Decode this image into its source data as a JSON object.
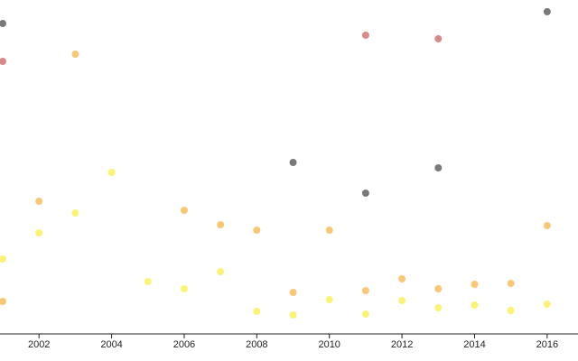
{
  "chart_data": {
    "type": "scatter",
    "xlim": [
      2000.925,
      2016.85
    ],
    "ylim": [
      0,
      370
    ],
    "xticks": [
      2002,
      2004,
      2006,
      2008,
      2010,
      2012,
      2014,
      2016
    ],
    "series": [
      {
        "color": "#7a7a7a",
        "x": [
          2001,
          2009,
          2011,
          2013,
          2016
        ],
        "values": [
          344,
          190,
          156,
          184,
          357
        ]
      },
      {
        "color": "#d88a8a",
        "x": [
          2001,
          2011,
          2013
        ],
        "values": [
          302,
          331,
          327
        ]
      },
      {
        "color": "#f8c878",
        "x": [
          2001,
          2002,
          2003,
          2006,
          2007,
          2008,
          2009,
          2010,
          2011,
          2012,
          2013,
          2014,
          2015,
          2016
        ],
        "values": [
          36,
          147,
          310,
          137,
          121,
          115,
          46,
          115,
          48,
          61,
          50,
          55,
          56,
          120
        ]
      },
      {
        "color": "#fbf27a",
        "x": [
          2001,
          2002,
          2003,
          2004,
          2005,
          2006,
          2007,
          2008,
          2009,
          2010,
          2011,
          2012,
          2013,
          2014,
          2015,
          2016
        ],
        "values": [
          83,
          112,
          134,
          179,
          58,
          50,
          69,
          25,
          21,
          38,
          22,
          37,
          29,
          32,
          26,
          33
        ]
      }
    ]
  }
}
